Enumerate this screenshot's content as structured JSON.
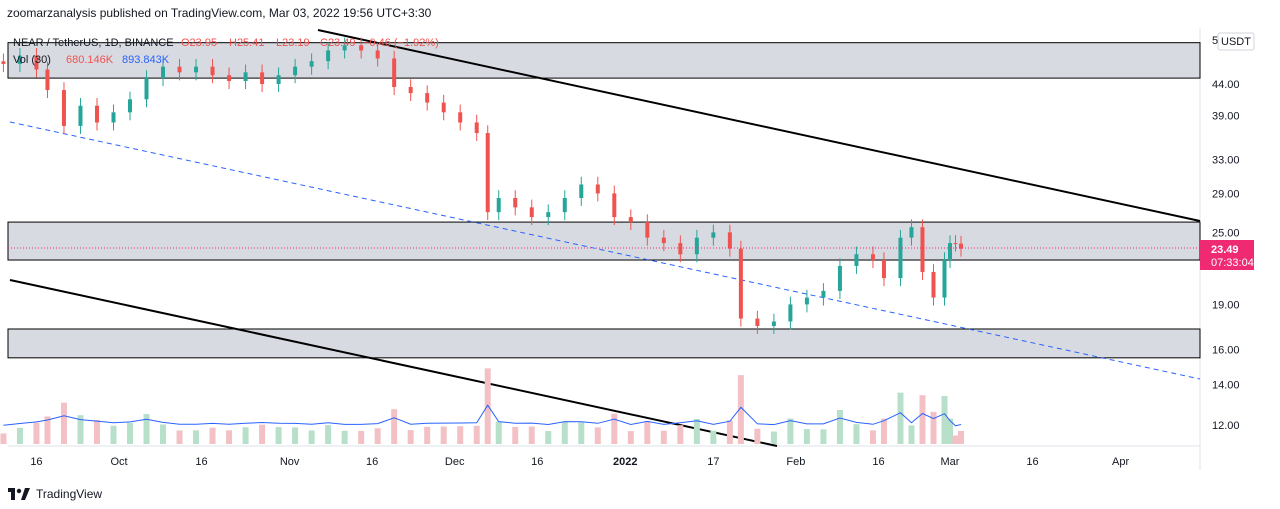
{
  "header": {
    "published": "zoomarzanalysis published on TradingView.com, Mar 03, 2022 19:56 UTC+3:30"
  },
  "legend": {
    "symbol": "NEAR / TetherUS, 1D, BINANCE",
    "open": "O23.95",
    "high": "H25.41",
    "low": "L23.19",
    "close": "C23.49",
    "change": "−0.46 (−1.92%)",
    "vol_label": "Vol (30)",
    "vol_value": "680.146K",
    "vol_ma": "893.843K"
  },
  "price_axis": {
    "currency": "USDT",
    "last_price": "23.49",
    "countdown": "07:33:04",
    "top_partial": "5"
  },
  "footer": {
    "brand": "TradingView"
  },
  "colors": {
    "up": "#26a69a",
    "down": "#ef5350",
    "vol_up": "#b7dfc9",
    "vol_down": "#f3c1c5",
    "vol_ma": "#2962ff",
    "badge": "#ef2a73",
    "zone": "#d1d4dc"
  },
  "chart_data": {
    "type": "candlestick",
    "title": "NEAR / TetherUS, 1D, BINANCE",
    "y_scale": "log",
    "y_ticks": [
      "44.00",
      "39.00",
      "33.00",
      "29.00",
      "25.00",
      "19.00",
      "16.00",
      "14.00",
      "12.00"
    ],
    "x_ticks": [
      "16",
      "Oct",
      "16",
      "Nov",
      "16",
      "Dec",
      "16",
      "2022",
      "17",
      "Feb",
      "16",
      "Mar",
      "16",
      "Apr"
    ],
    "x_tick_dates": [
      "2021-09-16",
      "2021-10-01",
      "2021-10-16",
      "2021-11-01",
      "2021-11-16",
      "2021-12-01",
      "2021-12-16",
      "2022-01-01",
      "2022-01-17",
      "2022-02-01",
      "2022-02-16",
      "2022-03-01",
      "2022-03-16",
      "2022-04-01"
    ],
    "zones": [
      [
        45.0,
        51.5
      ],
      [
        22.5,
        26.0
      ],
      [
        15.5,
        17.3
      ]
    ],
    "close_series": [
      [
        "2021-09-10",
        47.5
      ],
      [
        "2021-09-13",
        49.0
      ],
      [
        "2021-09-16",
        46.5
      ],
      [
        "2021-09-18",
        43.0
      ],
      [
        "2021-09-21",
        37.5
      ],
      [
        "2021-09-24",
        40.5
      ],
      [
        "2021-09-27",
        38.0
      ],
      [
        "2021-09-30",
        39.5
      ],
      [
        "2021-10-03",
        41.5
      ],
      [
        "2021-10-06",
        45.0
      ],
      [
        "2021-10-09",
        47.0
      ],
      [
        "2021-10-12",
        46.0
      ],
      [
        "2021-10-15",
        47.0
      ],
      [
        "2021-10-18",
        45.5
      ],
      [
        "2021-10-21",
        44.5
      ],
      [
        "2021-10-24",
        46.0
      ],
      [
        "2021-10-27",
        44.0
      ],
      [
        "2021-10-30",
        45.5
      ],
      [
        "2021-11-02",
        47.0
      ],
      [
        "2021-11-05",
        48.0
      ],
      [
        "2021-11-08",
        50.0
      ],
      [
        "2021-11-11",
        51.0
      ],
      [
        "2021-11-14",
        50.0
      ],
      [
        "2021-11-17",
        48.5
      ],
      [
        "2021-11-20",
        43.5
      ],
      [
        "2021-11-23",
        42.5
      ],
      [
        "2021-11-26",
        41.0
      ],
      [
        "2021-11-29",
        39.5
      ],
      [
        "2021-12-02",
        38.0
      ],
      [
        "2021-12-05",
        36.5
      ],
      [
        "2021-12-07",
        27.0
      ],
      [
        "2021-12-09",
        28.5
      ],
      [
        "2021-12-12",
        27.5
      ],
      [
        "2021-12-15",
        26.5
      ],
      [
        "2021-12-18",
        27.0
      ],
      [
        "2021-12-21",
        28.5
      ],
      [
        "2021-12-24",
        30.0
      ],
      [
        "2021-12-27",
        29.0
      ],
      [
        "2021-12-30",
        26.5
      ],
      [
        "2022-01-02",
        26.0
      ],
      [
        "2022-01-05",
        24.5
      ],
      [
        "2022-01-08",
        24.0
      ],
      [
        "2022-01-11",
        23.0
      ],
      [
        "2022-01-14",
        24.5
      ],
      [
        "2022-01-17",
        25.0
      ],
      [
        "2022-01-20",
        23.5
      ],
      [
        "2022-01-22",
        18.0
      ],
      [
        "2022-01-25",
        17.5
      ],
      [
        "2022-01-28",
        17.8
      ],
      [
        "2022-01-31",
        19.0
      ],
      [
        "2022-02-03",
        19.5
      ],
      [
        "2022-02-06",
        20.0
      ],
      [
        "2022-02-09",
        22.0
      ],
      [
        "2022-02-12",
        23.0
      ],
      [
        "2022-02-15",
        22.5
      ],
      [
        "2022-02-17",
        21.0
      ],
      [
        "2022-02-20",
        24.5
      ],
      [
        "2022-02-22",
        25.5
      ],
      [
        "2022-02-24",
        21.5
      ],
      [
        "2022-02-26",
        19.5
      ],
      [
        "2022-02-28",
        22.5
      ],
      [
        "2022-03-01",
        24.0
      ],
      [
        "2022-03-02",
        23.95
      ],
      [
        "2022-03-03",
        23.49
      ]
    ],
    "volume": {
      "label": "Vol (30)",
      "last": "680.146K",
      "ma": "893.843K"
    }
  }
}
